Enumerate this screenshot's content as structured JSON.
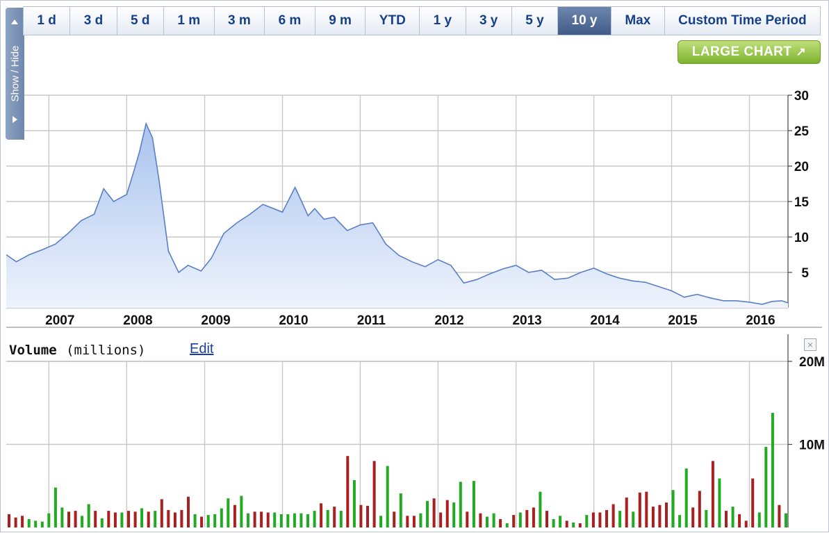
{
  "tabs": [
    {
      "label": "1 d"
    },
    {
      "label": "3 d"
    },
    {
      "label": "5 d"
    },
    {
      "label": "1 m"
    },
    {
      "label": "3 m"
    },
    {
      "label": "6 m"
    },
    {
      "label": "9 m"
    },
    {
      "label": "YTD"
    },
    {
      "label": "1 y"
    },
    {
      "label": "3 y"
    },
    {
      "label": "5 y"
    },
    {
      "label": "10 y",
      "active": true
    },
    {
      "label": "Max"
    },
    {
      "label": "Custom Time Period"
    }
  ],
  "show_hide_label": "Show / Hide",
  "large_chart_label": "LARGE CHART",
  "volume_panel": {
    "title": "Volume",
    "unit": "(millions)",
    "edit_label": "Edit"
  },
  "colors": {
    "price_line": "#5a7fc4",
    "price_fill_top": "#a9c3ee",
    "price_fill_bottom": "#eef3fc",
    "volume_up": "#22aa22",
    "volume_down": "#aa1f1f",
    "grid": "#c8c8c8"
  },
  "chart_data": [
    {
      "type": "area",
      "x_axis_type": "date",
      "x_tick_labels": [
        "2007",
        "2008",
        "2009",
        "2010",
        "2011",
        "2012",
        "2013",
        "2014",
        "2015",
        "2016"
      ],
      "x_ticks": [
        "2007-01-01",
        "2008-01-01",
        "2009-01-01",
        "2010-01-01",
        "2011-01-01",
        "2012-01-01",
        "2013-01-01",
        "2014-01-01",
        "2015-01-01",
        "2016-01-01"
      ],
      "xlim": [
        "2006-06-15",
        "2016-06-30"
      ],
      "y_ticks": [
        5,
        10,
        15,
        20,
        25,
        30
      ],
      "ylim": [
        0,
        30
      ],
      "y_axis_position": "right",
      "grid": true,
      "series": [
        {
          "x": [
            "2006-06-15",
            "2006-08-01",
            "2006-10-01",
            "2006-12-01",
            "2007-02-01",
            "2007-04-01",
            "2007-06-01",
            "2007-08-01",
            "2007-09-15",
            "2007-11-01",
            "2008-01-01",
            "2008-02-01",
            "2008-03-01",
            "2008-04-01",
            "2008-05-01",
            "2008-06-01",
            "2008-07-15",
            "2008-09-01",
            "2008-10-15",
            "2008-12-15",
            "2009-02-01",
            "2009-04-01",
            "2009-06-01",
            "2009-08-01",
            "2009-10-01",
            "2010-01-01",
            "2010-03-01",
            "2010-04-01",
            "2010-05-01",
            "2010-06-01",
            "2010-07-15",
            "2010-09-01",
            "2010-11-01",
            "2011-01-01",
            "2011-03-01",
            "2011-05-01",
            "2011-07-01",
            "2011-09-01",
            "2011-11-01",
            "2012-01-01",
            "2012-03-01",
            "2012-05-01",
            "2012-07-01",
            "2012-09-01",
            "2012-11-01",
            "2013-01-01",
            "2013-03-01",
            "2013-05-01",
            "2013-07-01",
            "2013-09-01",
            "2013-11-01",
            "2014-01-01",
            "2014-03-01",
            "2014-05-01",
            "2014-07-01",
            "2014-09-01",
            "2014-11-01",
            "2015-01-01",
            "2015-03-01",
            "2015-05-01",
            "2015-07-01",
            "2015-09-01",
            "2015-11-01",
            "2016-01-01",
            "2016-03-01",
            "2016-04-15",
            "2016-06-01",
            "2016-06-30"
          ],
          "y": [
            7.5,
            6.5,
            7.5,
            8.2,
            9.0,
            10.5,
            12.3,
            13.2,
            16.8,
            15.0,
            16.0,
            19.0,
            22.0,
            26.0,
            24.0,
            18.0,
            8.0,
            5.0,
            6.0,
            5.2,
            7.0,
            10.5,
            12.0,
            13.2,
            14.6,
            13.5,
            17.0,
            15.0,
            13.0,
            14.0,
            12.5,
            12.8,
            10.9,
            11.7,
            12.0,
            9.0,
            7.4,
            6.5,
            5.8,
            6.8,
            6.0,
            3.5,
            4.0,
            4.8,
            5.5,
            6.0,
            5.0,
            5.3,
            4.0,
            4.2,
            5.0,
            5.6,
            4.8,
            4.2,
            3.8,
            3.6,
            3.0,
            2.4,
            1.5,
            1.9,
            1.4,
            1.0,
            1.0,
            0.8,
            0.5,
            0.9,
            1.0,
            0.7
          ]
        }
      ]
    },
    {
      "type": "bar",
      "title": "Volume",
      "ylabel": "(millions)",
      "y_ticks": [
        10,
        20
      ],
      "y_tick_labels": [
        "10M",
        "20M"
      ],
      "ylim": [
        0,
        20
      ],
      "x_range": [
        "2006-06-15",
        "2016-06-30"
      ],
      "y_axis_position": "right",
      "grid": true,
      "series": [
        {
          "name": "volume",
          "values": [
            1.6,
            1.2,
            1.4,
            1.0,
            0.8,
            0.7,
            1.7,
            4.8,
            2.4,
            1.9,
            2.0,
            1.4,
            2.8,
            2.0,
            1.1,
            2.0,
            1.8,
            1.8,
            2.0,
            1.9,
            2.3,
            1.9,
            2.0,
            3.4,
            2.1,
            1.8,
            2.1,
            3.7,
            1.6,
            1.3,
            1.5,
            1.6,
            2.3,
            3.5,
            2.7,
            3.8,
            1.7,
            1.9,
            1.9,
            1.8,
            1.8,
            1.6,
            1.6,
            1.7,
            1.7,
            1.6,
            2.0,
            2.9,
            2.1,
            2.5,
            2.0,
            8.6,
            5.7,
            2.7,
            2.6,
            8.0,
            1.4,
            7.4,
            1.9,
            4.1,
            1.4,
            1.4,
            1.7,
            3.2,
            3.5,
            1.8,
            3.3,
            3.0,
            5.5,
            1.9,
            5.6,
            1.7,
            1.3,
            1.7,
            1.0,
            0.5,
            1.5,
            1.8,
            2.1,
            2.4,
            4.3,
            2.0,
            1.0,
            1.4,
            0.8,
            0.6,
            0.5,
            1.5,
            1.8,
            1.8,
            2.1,
            2.8,
            2.0,
            3.6,
            1.9,
            4.2,
            4.3,
            2.5,
            2.7,
            3.0,
            4.5,
            1.5,
            7.1,
            2.4,
            4.4,
            2.1,
            8.0,
            5.9,
            2.0,
            2.5,
            1.6,
            0.8,
            5.9,
            1.8,
            9.7,
            13.8,
            2.7,
            1.7
          ],
          "up": [
            false,
            false,
            false,
            true,
            true,
            true,
            true,
            true,
            true,
            false,
            false,
            true,
            true,
            false,
            true,
            false,
            false,
            true,
            false,
            false,
            true,
            false,
            true,
            false,
            false,
            false,
            false,
            false,
            true,
            false,
            true,
            true,
            true,
            true,
            false,
            true,
            true,
            false,
            false,
            false,
            true,
            true,
            true,
            true,
            true,
            true,
            true,
            false,
            true,
            false,
            true,
            false,
            true,
            false,
            false,
            false,
            true,
            true,
            false,
            true,
            false,
            false,
            true,
            true,
            false,
            false,
            false,
            true,
            true,
            false,
            true,
            false,
            true,
            true,
            false,
            true,
            false,
            true,
            false,
            false,
            true,
            false,
            true,
            true,
            false,
            true,
            false,
            true,
            false,
            false,
            false,
            false,
            true,
            false,
            true,
            false,
            false,
            false,
            false,
            false,
            true,
            true,
            true,
            false,
            false,
            true,
            false,
            true,
            false,
            true,
            false,
            false,
            false,
            true,
            true,
            true,
            false,
            true
          ]
        }
      ]
    }
  ]
}
